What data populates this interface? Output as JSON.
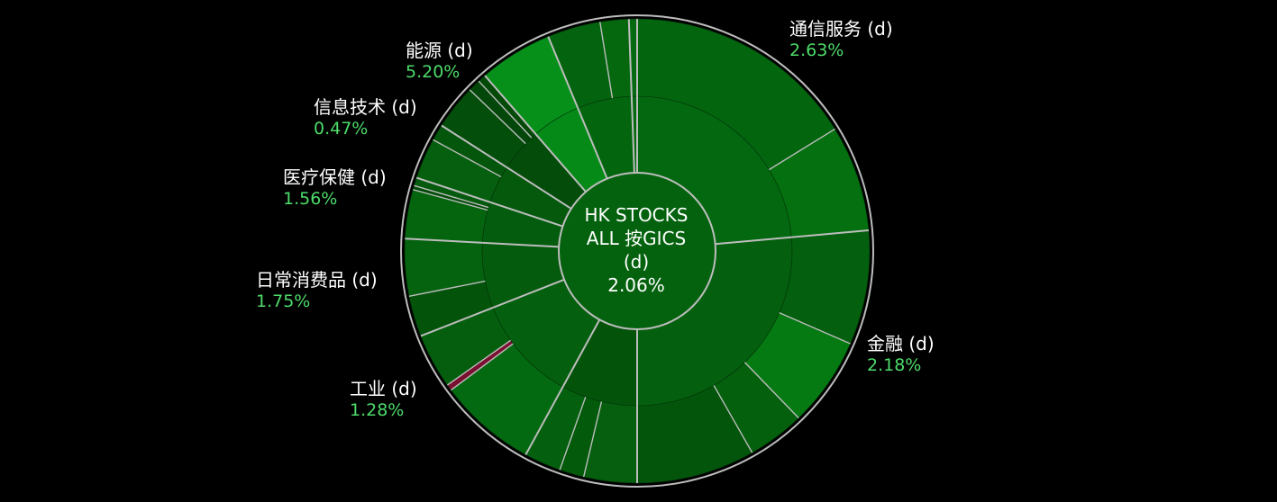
{
  "center": {
    "line1": "HK STOCKS",
    "line2": "ALL 按GICS",
    "line3": "(d)",
    "value": "2.06%"
  },
  "colors": {
    "background": "#000000",
    "border": "#bdbdbd",
    "label_text": "#ffffff",
    "positive_text": "#4ddb6a",
    "negative_segment": "#7a1030"
  },
  "chart_data": {
    "type": "sunburst",
    "title": "HK STOCKS ALL 按GICS (d)",
    "total_change_pct": 2.06,
    "sectors": [
      {
        "name": "通信服务 (d)",
        "pct_text": "2.63%",
        "change": 2.63,
        "color": "#03680f",
        "weight": 83,
        "children": [
          {
            "w": 57,
            "c": "#04650f"
          },
          {
            "w": 26,
            "c": "#05700f"
          }
        ]
      },
      {
        "name": "金融 (d)",
        "pct_text": "2.18%",
        "change": 2.18,
        "color": "#04600e",
        "weight": 93,
        "children": [
          {
            "w": 28,
            "c": "#045f0e"
          },
          {
            "w": 22,
            "c": "#067a12"
          },
          {
            "w": 14,
            "c": "#04600d"
          },
          {
            "w": 29,
            "c": "#04550c"
          }
        ]
      },
      {
        "name": "",
        "pct_text": "",
        "change": null,
        "color": "#03530b",
        "weight": 28,
        "children": [
          {
            "w": 13,
            "c": "#055f0e"
          },
          {
            "w": 6,
            "c": "#035a0b"
          },
          {
            "w": 9,
            "c": "#045f0e"
          }
        ]
      },
      {
        "name": "工业 (d)",
        "pct_text": "1.28%",
        "change": 1.28,
        "color": "#045f0e",
        "weight": 39,
        "children": [
          {
            "w": 24,
            "c": "#046a11"
          },
          {
            "w": 1.5,
            "c": "#7a1030"
          },
          {
            "w": 13.5,
            "c": "#055e0e"
          }
        ]
      },
      {
        "name": "日常消费品 (d)",
        "pct_text": "1.75%",
        "change": 1.75,
        "color": "#045a0d",
        "weight": 24,
        "children": [
          {
            "w": 10,
            "c": "#04530b"
          },
          {
            "w": 14,
            "c": "#05620f"
          }
        ]
      },
      {
        "name": "",
        "pct_text": "",
        "change": null,
        "color": "#045d0e",
        "weight": 15,
        "children": [
          {
            "w": 12,
            "c": "#05650f"
          },
          {
            "w": 1,
            "c": "#034a09"
          },
          {
            "w": 2,
            "c": "#045a0d"
          }
        ]
      },
      {
        "name": "医疗保健 (d)",
        "pct_text": "1.56%",
        "change": 1.56,
        "color": "#04590d",
        "weight": 14,
        "children": [
          {
            "w": 10,
            "c": "#055f0e"
          },
          {
            "w": 4,
            "c": "#04560c"
          }
        ]
      },
      {
        "name": "信息技术 (d)",
        "pct_text": "0.47%",
        "change": 0.47,
        "color": "#034c0a",
        "weight": 16,
        "children": [
          {
            "w": 11,
            "c": "#044e0b"
          },
          {
            "w": 3,
            "c": "#03480a"
          },
          {
            "w": 2,
            "c": "#034a09"
          }
        ]
      },
      {
        "name": "能源 (d)",
        "pct_text": "5.20%",
        "change": 5.2,
        "color": "#058a18",
        "weight": 18,
        "children": [
          {
            "w": 18,
            "c": "#06901a"
          }
        ]
      },
      {
        "name": "",
        "pct_text": "",
        "change": null,
        "color": "#04650f",
        "weight": 20,
        "children": [
          {
            "w": 13,
            "c": "#04630f"
          },
          {
            "w": 7,
            "c": "#05680f"
          }
        ]
      },
      {
        "name": "",
        "pct_text": "",
        "change": null,
        "color": "#056a11",
        "weight": 2,
        "children": [
          {
            "w": 2,
            "c": "#056a11"
          }
        ]
      }
    ]
  }
}
